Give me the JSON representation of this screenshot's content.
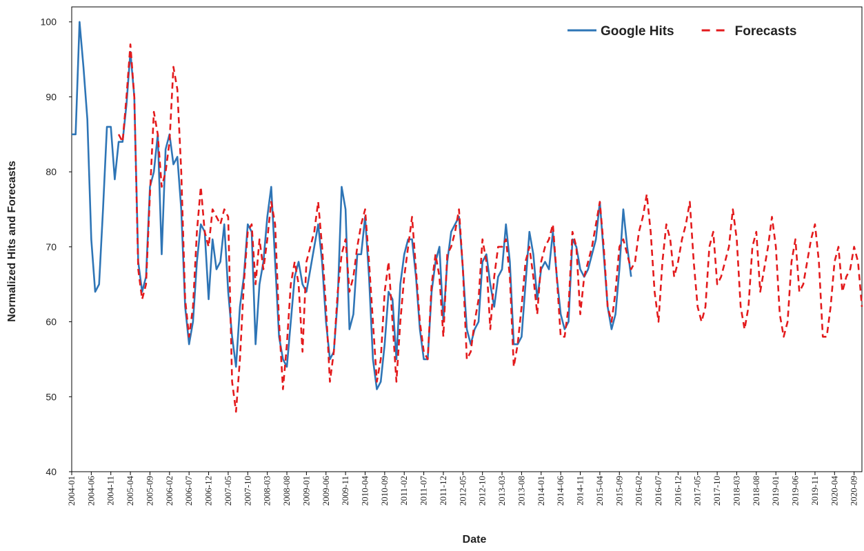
{
  "chart_data": {
    "type": "line",
    "x_label": "Date",
    "y_label": "Normalized Hits and Forecasts",
    "categories": [
      "2004-01",
      null,
      null,
      null,
      null,
      "2004-06",
      null,
      null,
      null,
      null,
      "2004-11",
      null,
      null,
      null,
      null,
      "2005-04",
      null,
      null,
      null,
      null,
      "2005-09",
      null,
      null,
      null,
      null,
      "2006-02",
      null,
      null,
      null,
      null,
      "2006-07",
      null,
      null,
      null,
      null,
      "2006-12",
      null,
      null,
      null,
      null,
      "2007-05",
      null,
      null,
      null,
      null,
      "2007-10",
      null,
      null,
      null,
      null,
      "2008-03",
      null,
      null,
      null,
      null,
      "2008-08",
      null,
      null,
      null,
      null,
      "2009-01",
      null,
      null,
      null,
      null,
      "2009-06",
      null,
      null,
      null,
      null,
      "2009-11",
      null,
      null,
      null,
      null,
      "2010-04",
      null,
      null,
      null,
      null,
      "2010-09",
      null,
      null,
      null,
      null,
      "2011-02",
      null,
      null,
      null,
      null,
      "2011-07",
      null,
      null,
      null,
      null,
      "2011-12",
      null,
      null,
      null,
      null,
      "2012-05",
      null,
      null,
      null,
      null,
      "2012-10",
      null,
      null,
      null,
      null,
      "2013-03",
      null,
      null,
      null,
      null,
      "2013-08",
      null,
      null,
      null,
      null,
      "2014-01",
      null,
      null,
      null,
      null,
      "2014-06",
      null,
      null,
      null,
      null,
      "2014-11",
      null,
      null,
      null,
      null,
      "2015-04",
      null,
      null,
      null,
      null,
      "2015-09",
      null,
      null,
      null,
      null,
      "2016-02",
      null,
      null,
      null,
      null,
      "2016-07",
      null,
      null,
      null,
      null,
      "2016-12",
      null,
      null,
      null,
      null,
      "2017-05",
      null,
      null,
      null,
      null,
      "2017-10",
      null,
      null,
      null,
      null,
      "2018-03",
      null,
      null,
      null,
      null,
      "2018-08",
      null,
      null,
      null,
      null,
      "2019-01",
      null,
      null,
      null,
      null,
      "2019-06",
      null,
      null,
      null,
      null,
      "2019-11",
      null,
      null,
      null,
      null,
      "2020-04",
      null,
      null,
      null,
      null,
      "2020-09",
      null,
      null
    ],
    "series": [
      {
        "name": "Google Hits",
        "color": "#2e75b6",
        "linestyle": "solid",
        "values": [
          85,
          85,
          100,
          94,
          87,
          71,
          64,
          65,
          75,
          86,
          86,
          79,
          84,
          84,
          89,
          96,
          90,
          68,
          64,
          66,
          78,
          80,
          85,
          69,
          83,
          85,
          81,
          82,
          75,
          62,
          57,
          60,
          68,
          73,
          72,
          63,
          71,
          67,
          68,
          73,
          64,
          58,
          54,
          62,
          66,
          73,
          72,
          57,
          65,
          68,
          74,
          78,
          68,
          58,
          55,
          54,
          60,
          66,
          68,
          65,
          64,
          67,
          70,
          73,
          68,
          60,
          55,
          56,
          63,
          78,
          75,
          59,
          61,
          69,
          69,
          74,
          66,
          55,
          51,
          52,
          57,
          64,
          63,
          55,
          65,
          69,
          71,
          71,
          66,
          59,
          55,
          55,
          64,
          68,
          70,
          60,
          68,
          72,
          73,
          74,
          67,
          59,
          57,
          59,
          60,
          68,
          69,
          65,
          62,
          66,
          67,
          73,
          68,
          57,
          57,
          58,
          65,
          72,
          69,
          63,
          67,
          68,
          67,
          72,
          66,
          61,
          59,
          60,
          71,
          70,
          67,
          66,
          67,
          69,
          71,
          76,
          69,
          62,
          59,
          61,
          67,
          75,
          70,
          66,
          null,
          null,
          null,
          null,
          null,
          null,
          null,
          null,
          null,
          null,
          null,
          null,
          null,
          null,
          null,
          null,
          null,
          null,
          null,
          null,
          null,
          null,
          null,
          null,
          null,
          null,
          null,
          null,
          null,
          null,
          null,
          null,
          null,
          null,
          null,
          null,
          null,
          null,
          null,
          null,
          null,
          null,
          null,
          null,
          null,
          null,
          null,
          null,
          null,
          null,
          null,
          null,
          null,
          null,
          null,
          null,
          null,
          null,
          null
        ]
      },
      {
        "name": "Forecasts",
        "color": "#e31a1c",
        "linestyle": "dashed",
        "values": [
          null,
          null,
          null,
          null,
          null,
          null,
          null,
          null,
          null,
          null,
          null,
          null,
          85,
          84,
          90,
          97,
          90,
          67,
          63,
          65,
          77,
          88,
          85,
          78,
          80,
          84,
          94,
          91,
          80,
          63,
          58,
          62,
          72,
          78,
          72,
          70,
          75,
          74,
          73,
          75,
          74,
          52,
          48,
          55,
          65,
          72,
          73,
          65,
          71,
          67,
          71,
          76,
          73,
          60,
          51,
          57,
          65,
          68,
          65,
          56,
          68,
          70,
          72,
          76,
          70,
          62,
          52,
          56,
          64,
          69,
          71,
          64,
          66,
          70,
          73,
          75,
          68,
          60,
          52,
          55,
          64,
          68,
          60,
          52,
          60,
          66,
          70,
          74,
          67,
          60,
          56,
          55,
          65,
          69,
          66,
          58,
          69,
          70,
          72,
          75,
          67,
          55,
          56,
          60,
          63,
          71,
          68,
          59,
          66,
          70,
          70,
          71,
          66,
          54,
          57,
          62,
          68,
          70,
          66,
          61,
          68,
          70,
          71,
          73,
          66,
          58,
          58,
          62,
          72,
          70,
          61,
          66,
          68,
          70,
          73,
          76,
          70,
          62,
          60,
          64,
          70,
          71,
          69,
          67,
          68,
          72,
          74,
          77,
          72,
          64,
          60,
          68,
          73,
          71,
          66,
          68,
          71,
          73,
          76,
          68,
          62,
          60,
          62,
          70,
          72,
          65,
          66,
          68,
          70,
          75,
          71,
          62,
          59,
          62,
          70,
          72,
          64,
          67,
          70,
          74,
          70,
          61,
          58,
          60,
          68,
          71,
          64,
          65,
          68,
          71,
          73,
          68,
          58,
          58,
          62,
          68,
          70,
          64,
          66,
          67,
          70,
          68,
          62
        ]
      }
    ],
    "ylim": [
      40,
      102
    ],
    "yticks": [
      40,
      50,
      60,
      70,
      80,
      90,
      100
    ],
    "legend": "upper right"
  }
}
